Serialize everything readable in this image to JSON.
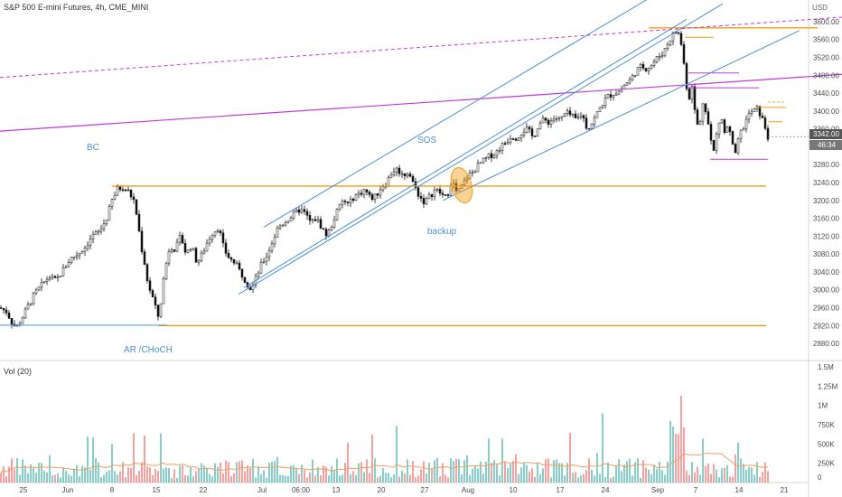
{
  "header": {
    "title": "S&P 500 E-mini Futures, 4h, CME_MINI",
    "currency": "USD"
  },
  "volume_pane": {
    "label": "Vol (20)"
  },
  "colors": {
    "up": "#26a69a",
    "down": "#ef5350",
    "candle": "#111111",
    "channel": "#4a90d9",
    "orange": "#f39c12",
    "magenta": "#c03bdb",
    "vol_ma": "#f0a060"
  },
  "annotations": {
    "bc": "BC",
    "sos": "SOS",
    "backup": "backup",
    "ar": "AR /CHoCH"
  },
  "price_badges": {
    "last_price": "3342.00",
    "countdown": "46:34"
  },
  "chart_data": [
    {
      "type": "candlestick",
      "title": "S&P 500 E-mini Futures, 4h, CME_MINI",
      "y_axis_ticks": [
        "3600.00",
        "3560.00",
        "3520.00",
        "3480.00",
        "3440.00",
        "3400.00",
        "3360.00",
        "3320.00",
        "3280.00",
        "3240.00",
        "3200.00",
        "3160.00",
        "3120.00",
        "3080.00",
        "3040.00",
        "3000.00",
        "2960.00",
        "2920.00",
        "2880.00"
      ],
      "x_axis_ticks": [
        "25",
        "Jun",
        "8",
        "15",
        "22",
        "Jul",
        "06:00",
        "13",
        "20",
        "27",
        "Aug",
        "10",
        "17",
        "24",
        "Sep",
        "7",
        "14",
        "21"
      ],
      "ylim": [
        2860,
        3620
      ],
      "close_path": [
        [
          0,
          2960
        ],
        [
          8,
          2950
        ],
        [
          12,
          2930
        ],
        [
          18,
          2915
        ],
        [
          24,
          2935
        ],
        [
          30,
          2960
        ],
        [
          38,
          2990
        ],
        [
          46,
          3010
        ],
        [
          54,
          3030
        ],
        [
          62,
          3020
        ],
        [
          70,
          3045
        ],
        [
          78,
          3070
        ],
        [
          86,
          3080
        ],
        [
          94,
          3095
        ],
        [
          102,
          3120
        ],
        [
          110,
          3130
        ],
        [
          118,
          3160
        ],
        [
          124,
          3200
        ],
        [
          130,
          3225
        ],
        [
          136,
          3230
        ],
        [
          142,
          3220
        ],
        [
          148,
          3200
        ],
        [
          152,
          3160
        ],
        [
          156,
          3100
        ],
        [
          160,
          3060
        ],
        [
          164,
          3010
        ],
        [
          168,
          2990
        ],
        [
          172,
          2960
        ],
        [
          176,
          2935
        ],
        [
          180,
          3010
        ],
        [
          184,
          3060
        ],
        [
          188,
          3100
        ],
        [
          194,
          3090
        ],
        [
          200,
          3120
        ],
        [
          206,
          3080
        ],
        [
          212,
          3100
        ],
        [
          218,
          3060
        ],
        [
          224,
          3080
        ],
        [
          230,
          3110
        ],
        [
          236,
          3130
        ],
        [
          242,
          3140
        ],
        [
          248,
          3090
        ],
        [
          254,
          3070
        ],
        [
          260,
          3060
        ],
        [
          266,
          3040
        ],
        [
          272,
          3020
        ],
        [
          278,
          3000
        ],
        [
          284,
          3030
        ],
        [
          290,
          3060
        ],
        [
          296,
          3080
        ],
        [
          302,
          3110
        ],
        [
          308,
          3140
        ],
        [
          314,
          3150
        ],
        [
          320,
          3160
        ],
        [
          326,
          3170
        ],
        [
          332,
          3180
        ],
        [
          338,
          3170
        ],
        [
          344,
          3150
        ],
        [
          350,
          3160
        ],
        [
          356,
          3140
        ],
        [
          362,
          3120
        ],
        [
          368,
          3150
        ],
        [
          374,
          3180
        ],
        [
          380,
          3200
        ],
        [
          386,
          3190
        ],
        [
          392,
          3210
        ],
        [
          398,
          3215
        ],
        [
          404,
          3225
        ],
        [
          410,
          3205
        ],
        [
          416,
          3210
        ],
        [
          422,
          3230
        ],
        [
          428,
          3240
        ],
        [
          434,
          3265
        ],
        [
          440,
          3270
        ],
        [
          446,
          3255
        ],
        [
          452,
          3265
        ],
        [
          458,
          3235
        ],
        [
          464,
          3210
        ],
        [
          470,
          3195
        ],
        [
          476,
          3210
        ],
        [
          482,
          3225
        ],
        [
          488,
          3215
        ],
        [
          494,
          3205
        ],
        [
          500,
          3245
        ],
        [
          506,
          3215
        ],
        [
          512,
          3235
        ],
        [
          518,
          3255
        ],
        [
          524,
          3265
        ],
        [
          530,
          3280
        ],
        [
          536,
          3290
        ],
        [
          542,
          3300
        ],
        [
          548,
          3305
        ],
        [
          554,
          3320
        ],
        [
          560,
          3330
        ],
        [
          566,
          3345
        ],
        [
          572,
          3340
        ],
        [
          578,
          3355
        ],
        [
          584,
          3360
        ],
        [
          590,
          3340
        ],
        [
          596,
          3370
        ],
        [
          602,
          3380
        ],
        [
          608,
          3375
        ],
        [
          614,
          3385
        ],
        [
          620,
          3380
        ],
        [
          626,
          3395
        ],
        [
          632,
          3390
        ],
        [
          638,
          3380
        ],
        [
          644,
          3395
        ],
        [
          650,
          3360
        ],
        [
          656,
          3375
        ],
        [
          662,
          3400
        ],
        [
          668,
          3420
        ],
        [
          674,
          3435
        ],
        [
          680,
          3440
        ],
        [
          686,
          3445
        ],
        [
          692,
          3460
        ],
        [
          698,
          3470
        ],
        [
          704,
          3490
        ],
        [
          710,
          3500
        ],
        [
          716,
          3495
        ],
        [
          722,
          3505
        ],
        [
          728,
          3520
        ],
        [
          734,
          3530
        ],
        [
          740,
          3555
        ],
        [
          746,
          3575
        ],
        [
          750,
          3580
        ],
        [
          754,
          3550
        ],
        [
          758,
          3490
        ],
        [
          762,
          3420
        ],
        [
          766,
          3460
        ],
        [
          770,
          3380
        ],
        [
          774,
          3360
        ],
        [
          778,
          3420
        ],
        [
          782,
          3400
        ],
        [
          786,
          3340
        ],
        [
          790,
          3310
        ],
        [
          794,
          3360
        ],
        [
          798,
          3390
        ],
        [
          802,
          3350
        ],
        [
          806,
          3370
        ],
        [
          810,
          3330
        ],
        [
          814,
          3300
        ],
        [
          818,
          3345
        ],
        [
          822,
          3360
        ],
        [
          826,
          3380
        ],
        [
          830,
          3395
        ],
        [
          834,
          3400
        ],
        [
          838,
          3405
        ],
        [
          842,
          3390
        ],
        [
          846,
          3370
        ],
        [
          850,
          3342
        ]
      ]
    },
    {
      "type": "bar",
      "title": "Vol (20)",
      "y_axis_ticks": [
        "1.5M",
        "1.25M",
        "1M",
        "750K",
        "500K",
        "250K",
        "0"
      ],
      "ylim": [
        0,
        1500000
      ]
    }
  ]
}
